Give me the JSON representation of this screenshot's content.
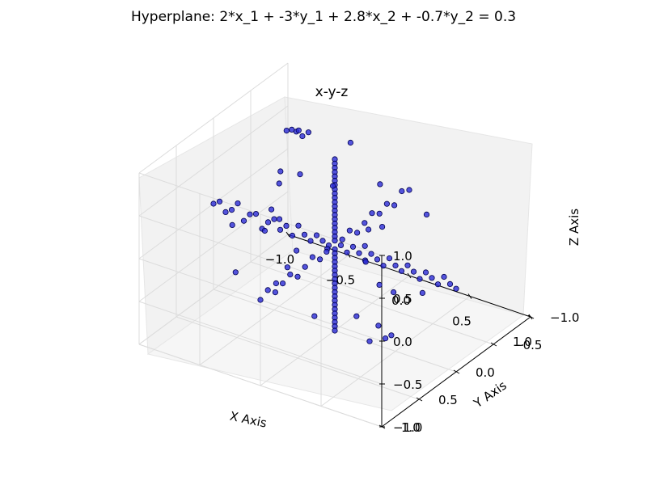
{
  "chart_data": {
    "type": "scatter",
    "title": "Hyperplane: 2*x_1 + -3*y_1 + 2.8*x_2 + -0.7*y_2 = 0.3",
    "subtitle": "x-y-z",
    "xlabel": "X Axis",
    "ylabel": "Y Axis",
    "zlabel": "Z Axis",
    "xlim": [
      -1.0,
      1.0
    ],
    "ylim": [
      -1.0,
      1.0
    ],
    "zlim": [
      -1.0,
      1.0
    ],
    "x_ticks": [
      "−1.0",
      "−0.5",
      "0.0",
      "0.5",
      "1.0"
    ],
    "y_ticks": [
      "−1.0",
      "−0.5",
      "0.0",
      "0.5",
      "1.0"
    ],
    "z_ticks": [
      "−1.0",
      "−0.5",
      "0.0",
      "0.5",
      "1.0"
    ],
    "projection": "3d",
    "grid": true,
    "marker_color": "#2b2bd6",
    "series": [
      {
        "points": [
          [
            0,
            0,
            1.0
          ],
          [
            0,
            0,
            0.95
          ],
          [
            0,
            0,
            0.9
          ],
          [
            0,
            0,
            0.85
          ],
          [
            0,
            0,
            0.8
          ],
          [
            0,
            0,
            0.75
          ],
          [
            0,
            0,
            0.7
          ],
          [
            0,
            0,
            0.65
          ],
          [
            0,
            0,
            0.6
          ],
          [
            0,
            0,
            0.55
          ],
          [
            0,
            0,
            0.5
          ],
          [
            0,
            0,
            0.45
          ],
          [
            0,
            0,
            0.4
          ],
          [
            0,
            0,
            0.35
          ],
          [
            0,
            0,
            0.3
          ],
          [
            0,
            0,
            0.25
          ],
          [
            0,
            0,
            0.2
          ],
          [
            0,
            0,
            0.15
          ],
          [
            0,
            0,
            0.1
          ],
          [
            0,
            0,
            0.05
          ],
          [
            0,
            0,
            -0.05
          ],
          [
            0,
            0,
            -0.1
          ],
          [
            0,
            0,
            -0.15
          ],
          [
            0,
            0,
            -0.2
          ],
          [
            0,
            0,
            -0.25
          ],
          [
            0,
            0,
            -0.3
          ],
          [
            0,
            0,
            -0.35
          ],
          [
            0,
            0,
            -0.4
          ],
          [
            0,
            0,
            -0.45
          ],
          [
            0,
            0,
            -0.5
          ],
          [
            0,
            0,
            -0.55
          ],
          [
            0,
            0,
            -0.6
          ],
          [
            0,
            0,
            -0.65
          ],
          [
            0,
            0,
            -0.7
          ],
          [
            0,
            0,
            -0.75
          ],
          [
            0,
            0,
            -0.8
          ],
          [
            0,
            0,
            -0.85
          ],
          [
            0,
            0,
            -0.9
          ],
          [
            0,
            0,
            -0.95
          ],
          [
            0,
            0,
            -1.0
          ],
          [
            -1.0,
            0,
            0.0
          ],
          [
            -0.95,
            0,
            0.05
          ],
          [
            -0.9,
            0,
            -0.05
          ],
          [
            -0.85,
            0,
            0.0
          ],
          [
            -0.8,
            0,
            0.1
          ],
          [
            -0.75,
            0,
            -0.08
          ],
          [
            -0.7,
            0,
            0.02
          ],
          [
            -0.65,
            0,
            0.05
          ],
          [
            -0.6,
            0,
            -0.1
          ],
          [
            -0.55,
            0,
            0.0
          ],
          [
            -0.5,
            0,
            0.06
          ],
          [
            -0.45,
            0,
            -0.04
          ],
          [
            -0.4,
            0,
            0.03
          ],
          [
            -0.35,
            0,
            -0.06
          ],
          [
            -0.3,
            0,
            0.08
          ],
          [
            -0.25,
            0,
            0.0
          ],
          [
            -0.2,
            0,
            -0.05
          ],
          [
            -0.15,
            0,
            0.04
          ],
          [
            -0.1,
            0,
            0.0
          ],
          [
            -0.05,
            0,
            -0.03
          ],
          [
            0.05,
            0,
            0.02
          ],
          [
            0.1,
            0,
            -0.04
          ],
          [
            0.15,
            0,
            0.05
          ],
          [
            0.2,
            0,
            0.0
          ],
          [
            0.25,
            0,
            -0.06
          ],
          [
            0.3,
            0,
            0.04
          ],
          [
            0.35,
            0,
            0.0
          ],
          [
            0.4,
            0,
            -0.05
          ],
          [
            0.45,
            0,
            0.06
          ],
          [
            0.5,
            0,
            0.0
          ],
          [
            0.55,
            0,
            -0.04
          ],
          [
            0.6,
            0,
            0.05
          ],
          [
            0.65,
            0,
            0.0
          ],
          [
            0.7,
            0,
            -0.06
          ],
          [
            0.75,
            0,
            0.04
          ],
          [
            0.8,
            0,
            0.0
          ],
          [
            0.85,
            0,
            -0.05
          ],
          [
            0.9,
            0,
            0.06
          ],
          [
            0.95,
            0,
            0.0
          ],
          [
            1.0,
            0,
            -0.03
          ],
          [
            0,
            -1.0,
            0.0
          ],
          [
            0,
            -0.9,
            0.05
          ],
          [
            0,
            -0.8,
            -0.05
          ],
          [
            0,
            -0.7,
            0.03
          ],
          [
            0,
            -0.6,
            -0.02
          ],
          [
            0,
            -0.5,
            0.05
          ],
          [
            0,
            -0.4,
            0.0
          ],
          [
            0,
            -0.3,
            -0.05
          ],
          [
            0,
            -0.2,
            0.04
          ],
          [
            0,
            -0.1,
            0.0
          ],
          [
            0,
            0.1,
            0.02
          ],
          [
            0,
            0.2,
            -0.04
          ],
          [
            0,
            0.3,
            0.05
          ],
          [
            0,
            0.4,
            0.0
          ],
          [
            0,
            0.5,
            -0.05
          ],
          [
            0,
            0.6,
            0.04
          ],
          [
            0,
            0.7,
            0.0
          ],
          [
            0,
            0.8,
            -0.04
          ],
          [
            0,
            0.9,
            0.05
          ],
          [
            0,
            1.0,
            0.0
          ],
          [
            -0.95,
            -0.9,
            0.3
          ],
          [
            -0.9,
            -0.95,
            0.28
          ],
          [
            -0.85,
            -0.95,
            0.25
          ],
          [
            -1.0,
            -0.9,
            -0.2
          ],
          [
            -0.98,
            -0.85,
            -0.3
          ],
          [
            -0.9,
            -1.0,
            -0.25
          ],
          [
            -0.85,
            -0.9,
            0.35
          ],
          [
            -0.8,
            -0.95,
            0.32
          ],
          [
            0.8,
            0.9,
            0.95
          ],
          [
            0.95,
            0.95,
            0.6
          ],
          [
            0.9,
            1.0,
            -0.05
          ],
          [
            1.0,
            0.95,
            0.0
          ],
          [
            0.7,
            0.85,
            0.05
          ],
          [
            0.85,
            0.8,
            -0.02
          ],
          [
            -0.3,
            -0.7,
            0.6
          ],
          [
            -0.6,
            -0.4,
            0.8
          ],
          [
            0.4,
            0.2,
            0.5
          ],
          [
            0.5,
            0.4,
            0.3
          ],
          [
            0.3,
            0.6,
            0.45
          ],
          [
            -0.4,
            0.2,
            0.35
          ],
          [
            -0.2,
            -0.3,
            0.4
          ],
          [
            -0.5,
            -0.3,
            -0.5
          ],
          [
            -0.3,
            0.3,
            -0.4
          ],
          [
            0.3,
            -0.3,
            -0.6
          ],
          [
            0.6,
            -0.2,
            -0.4
          ],
          [
            0.2,
            0.6,
            -0.35
          ],
          [
            -0.6,
            0.4,
            0.2
          ],
          [
            -0.7,
            -0.2,
            -0.3
          ],
          [
            0.45,
            -0.5,
            0.25
          ],
          [
            -0.15,
            0.5,
            0.55
          ],
          [
            0.25,
            -0.2,
            0.7
          ],
          [
            -0.45,
            0.6,
            -0.15
          ],
          [
            0.65,
            0.3,
            -0.55
          ],
          [
            0.1,
            0.8,
            0.3
          ],
          [
            -0.1,
            -0.8,
            -0.35
          ]
        ]
      }
    ]
  }
}
